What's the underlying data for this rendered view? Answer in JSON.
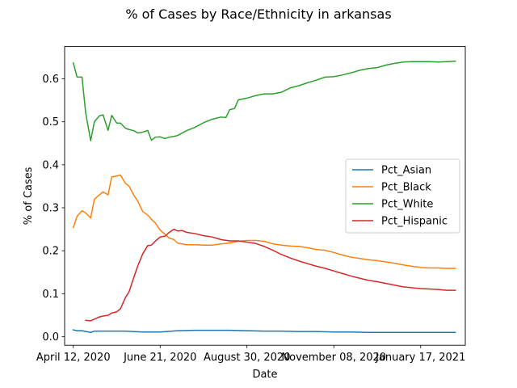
{
  "chart_data": {
    "type": "line",
    "title": "% of Cases by Race/Ethnicity in arkansas",
    "xlabel": "Date",
    "ylabel": "% of Cases",
    "xlim": [
      "2020-04-05",
      "2021-02-22"
    ],
    "ylim": [
      -0.02,
      0.675
    ],
    "x_ticks": [
      "2020-04-12",
      "2020-06-21",
      "2020-08-30",
      "2020-11-08",
      "2021-01-17"
    ],
    "x_tick_labels": [
      "April 12, 2020",
      "June 21, 2020",
      "August 30, 2020",
      "November 08, 2020",
      "January 17, 2021"
    ],
    "y_ticks": [
      0.0,
      0.1,
      0.2,
      0.3,
      0.4,
      0.5,
      0.6
    ],
    "y_tick_labels": [
      "0.0",
      "0.1",
      "0.2",
      "0.3",
      "0.4",
      "0.5",
      "0.6"
    ],
    "grid": false,
    "legend_position": "center-right",
    "series": [
      {
        "name": "Pct_Asian",
        "color": "#1f77b4",
        "points": [
          [
            "2020-04-12",
            0.016
          ],
          [
            "2020-04-15",
            0.014
          ],
          [
            "2020-04-19",
            0.014
          ],
          [
            "2020-04-26",
            0.01
          ],
          [
            "2020-04-29",
            0.013
          ],
          [
            "2020-05-10",
            0.013
          ],
          [
            "2020-05-24",
            0.013
          ],
          [
            "2020-06-07",
            0.011
          ],
          [
            "2020-06-21",
            0.011
          ],
          [
            "2020-07-05",
            0.014
          ],
          [
            "2020-07-19",
            0.015
          ],
          [
            "2020-08-02",
            0.015
          ],
          [
            "2020-08-16",
            0.015
          ],
          [
            "2020-08-30",
            0.014
          ],
          [
            "2020-09-13",
            0.013
          ],
          [
            "2020-09-27",
            0.013
          ],
          [
            "2020-10-11",
            0.012
          ],
          [
            "2020-10-25",
            0.012
          ],
          [
            "2020-11-08",
            0.011
          ],
          [
            "2020-11-22",
            0.011
          ],
          [
            "2020-12-06",
            0.01
          ],
          [
            "2020-12-20",
            0.01
          ],
          [
            "2021-01-03",
            0.01
          ],
          [
            "2021-01-17",
            0.01
          ],
          [
            "2021-01-31",
            0.01
          ],
          [
            "2021-02-14",
            0.01
          ]
        ]
      },
      {
        "name": "Pct_Black",
        "color": "#ff7f0e",
        "points": [
          [
            "2020-04-12",
            0.254
          ],
          [
            "2020-04-15",
            0.28
          ],
          [
            "2020-04-19",
            0.293
          ],
          [
            "2020-04-22",
            0.288
          ],
          [
            "2020-04-26",
            0.276
          ],
          [
            "2020-04-29",
            0.32
          ],
          [
            "2020-05-03",
            0.33
          ],
          [
            "2020-05-06",
            0.337
          ],
          [
            "2020-05-10",
            0.33
          ],
          [
            "2020-05-13",
            0.372
          ],
          [
            "2020-05-17",
            0.374
          ],
          [
            "2020-05-20",
            0.376
          ],
          [
            "2020-05-24",
            0.357
          ],
          [
            "2020-05-27",
            0.35
          ],
          [
            "2020-05-31",
            0.328
          ],
          [
            "2020-06-03",
            0.315
          ],
          [
            "2020-06-07",
            0.291
          ],
          [
            "2020-06-11",
            0.283
          ],
          [
            "2020-06-14",
            0.273
          ],
          [
            "2020-06-17",
            0.265
          ],
          [
            "2020-06-21",
            0.248
          ],
          [
            "2020-06-25",
            0.238
          ],
          [
            "2020-06-28",
            0.23
          ],
          [
            "2020-07-02",
            0.226
          ],
          [
            "2020-07-05",
            0.218
          ],
          [
            "2020-07-12",
            0.214
          ],
          [
            "2020-07-19",
            0.214
          ],
          [
            "2020-07-26",
            0.213
          ],
          [
            "2020-08-02",
            0.213
          ],
          [
            "2020-08-09",
            0.216
          ],
          [
            "2020-08-16",
            0.218
          ],
          [
            "2020-08-23",
            0.222
          ],
          [
            "2020-08-30",
            0.224
          ],
          [
            "2020-09-06",
            0.224
          ],
          [
            "2020-09-13",
            0.222
          ],
          [
            "2020-09-20",
            0.216
          ],
          [
            "2020-09-27",
            0.213
          ],
          [
            "2020-10-04",
            0.211
          ],
          [
            "2020-10-11",
            0.21
          ],
          [
            "2020-10-18",
            0.207
          ],
          [
            "2020-10-25",
            0.203
          ],
          [
            "2020-11-01",
            0.201
          ],
          [
            "2020-11-08",
            0.196
          ],
          [
            "2020-11-15",
            0.19
          ],
          [
            "2020-11-22",
            0.185
          ],
          [
            "2020-11-29",
            0.182
          ],
          [
            "2020-12-06",
            0.179
          ],
          [
            "2020-12-13",
            0.177
          ],
          [
            "2020-12-20",
            0.174
          ],
          [
            "2020-12-27",
            0.171
          ],
          [
            "2021-01-03",
            0.167
          ],
          [
            "2021-01-10",
            0.164
          ],
          [
            "2021-01-17",
            0.161
          ],
          [
            "2021-01-24",
            0.16
          ],
          [
            "2021-01-31",
            0.16
          ],
          [
            "2021-02-07",
            0.159
          ],
          [
            "2021-02-14",
            0.159
          ]
        ]
      },
      {
        "name": "Pct_White",
        "color": "#2ca02c",
        "points": [
          [
            "2020-04-12",
            0.637
          ],
          [
            "2020-04-15",
            0.604
          ],
          [
            "2020-04-19",
            0.604
          ],
          [
            "2020-04-22",
            0.52
          ],
          [
            "2020-04-26",
            0.456
          ],
          [
            "2020-04-29",
            0.5
          ],
          [
            "2020-05-03",
            0.514
          ],
          [
            "2020-05-06",
            0.516
          ],
          [
            "2020-05-10",
            0.48
          ],
          [
            "2020-05-13",
            0.515
          ],
          [
            "2020-05-17",
            0.497
          ],
          [
            "2020-05-20",
            0.497
          ],
          [
            "2020-05-24",
            0.485
          ],
          [
            "2020-05-27",
            0.482
          ],
          [
            "2020-05-31",
            0.479
          ],
          [
            "2020-06-03",
            0.474
          ],
          [
            "2020-06-07",
            0.476
          ],
          [
            "2020-06-11",
            0.48
          ],
          [
            "2020-06-14",
            0.457
          ],
          [
            "2020-06-17",
            0.464
          ],
          [
            "2020-06-21",
            0.465
          ],
          [
            "2020-06-25",
            0.461
          ],
          [
            "2020-06-28",
            0.464
          ],
          [
            "2020-07-02",
            0.466
          ],
          [
            "2020-07-05",
            0.468
          ],
          [
            "2020-07-12",
            0.479
          ],
          [
            "2020-07-19",
            0.487
          ],
          [
            "2020-07-26",
            0.498
          ],
          [
            "2020-08-02",
            0.506
          ],
          [
            "2020-08-09",
            0.511
          ],
          [
            "2020-08-13",
            0.51
          ],
          [
            "2020-08-16",
            0.528
          ],
          [
            "2020-08-20",
            0.531
          ],
          [
            "2020-08-23",
            0.551
          ],
          [
            "2020-08-30",
            0.555
          ],
          [
            "2020-09-06",
            0.561
          ],
          [
            "2020-09-13",
            0.565
          ],
          [
            "2020-09-20",
            0.565
          ],
          [
            "2020-09-27",
            0.569
          ],
          [
            "2020-10-04",
            0.579
          ],
          [
            "2020-10-11",
            0.584
          ],
          [
            "2020-10-18",
            0.591
          ],
          [
            "2020-10-25",
            0.597
          ],
          [
            "2020-11-01",
            0.604
          ],
          [
            "2020-11-08",
            0.605
          ],
          [
            "2020-11-15",
            0.609
          ],
          [
            "2020-11-22",
            0.614
          ],
          [
            "2020-11-29",
            0.62
          ],
          [
            "2020-12-06",
            0.624
          ],
          [
            "2020-12-13",
            0.626
          ],
          [
            "2020-12-20",
            0.632
          ],
          [
            "2020-12-27",
            0.636
          ],
          [
            "2021-01-03",
            0.639
          ],
          [
            "2021-01-10",
            0.64
          ],
          [
            "2021-01-17",
            0.64
          ],
          [
            "2021-01-24",
            0.64
          ],
          [
            "2021-01-31",
            0.639
          ],
          [
            "2021-02-07",
            0.64
          ],
          [
            "2021-02-14",
            0.641
          ]
        ]
      },
      {
        "name": "Pct_Hispanic",
        "color": "#d62728",
        "points": [
          [
            "2020-04-22",
            0.038
          ],
          [
            "2020-04-26",
            0.037
          ],
          [
            "2020-04-29",
            0.041
          ],
          [
            "2020-05-03",
            0.046
          ],
          [
            "2020-05-06",
            0.048
          ],
          [
            "2020-05-10",
            0.05
          ],
          [
            "2020-05-13",
            0.055
          ],
          [
            "2020-05-17",
            0.058
          ],
          [
            "2020-05-20",
            0.065
          ],
          [
            "2020-05-24",
            0.091
          ],
          [
            "2020-05-27",
            0.105
          ],
          [
            "2020-05-31",
            0.14
          ],
          [
            "2020-06-03",
            0.165
          ],
          [
            "2020-06-07",
            0.193
          ],
          [
            "2020-06-11",
            0.212
          ],
          [
            "2020-06-14",
            0.213
          ],
          [
            "2020-06-17",
            0.222
          ],
          [
            "2020-06-21",
            0.232
          ],
          [
            "2020-06-25",
            0.234
          ],
          [
            "2020-06-28",
            0.242
          ],
          [
            "2020-07-02",
            0.25
          ],
          [
            "2020-07-05",
            0.246
          ],
          [
            "2020-07-09",
            0.247
          ],
          [
            "2020-07-12",
            0.243
          ],
          [
            "2020-07-19",
            0.24
          ],
          [
            "2020-07-26",
            0.235
          ],
          [
            "2020-08-02",
            0.232
          ],
          [
            "2020-08-09",
            0.226
          ],
          [
            "2020-08-16",
            0.223
          ],
          [
            "2020-08-23",
            0.223
          ],
          [
            "2020-08-30",
            0.22
          ],
          [
            "2020-09-06",
            0.217
          ],
          [
            "2020-09-13",
            0.21
          ],
          [
            "2020-09-20",
            0.201
          ],
          [
            "2020-09-27",
            0.191
          ],
          [
            "2020-10-04",
            0.183
          ],
          [
            "2020-10-11",
            0.176
          ],
          [
            "2020-10-18",
            0.17
          ],
          [
            "2020-10-25",
            0.164
          ],
          [
            "2020-11-01",
            0.159
          ],
          [
            "2020-11-08",
            0.153
          ],
          [
            "2020-11-15",
            0.147
          ],
          [
            "2020-11-22",
            0.141
          ],
          [
            "2020-11-29",
            0.136
          ],
          [
            "2020-12-06",
            0.131
          ],
          [
            "2020-12-13",
            0.128
          ],
          [
            "2020-12-20",
            0.124
          ],
          [
            "2020-12-27",
            0.12
          ],
          [
            "2021-01-03",
            0.116
          ],
          [
            "2021-01-10",
            0.114
          ],
          [
            "2021-01-17",
            0.112
          ],
          [
            "2021-01-24",
            0.111
          ],
          [
            "2021-01-31",
            0.11
          ],
          [
            "2021-02-07",
            0.108
          ],
          [
            "2021-02-14",
            0.108
          ]
        ]
      }
    ]
  }
}
